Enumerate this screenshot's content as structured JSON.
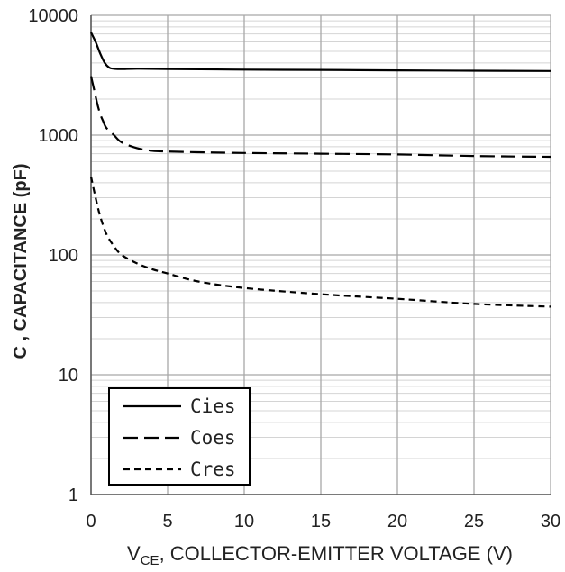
{
  "chart_data": {
    "type": "line",
    "title": "",
    "xlabel_main": "V",
    "xlabel_sub": "CE",
    "xlabel_rest": ", COLLECTOR-EMITTER VOLTAGE (V)",
    "ylabel": "C , CAPACITANCE (pF)",
    "xlim": [
      0,
      30
    ],
    "ylim": [
      1,
      10000
    ],
    "yscale": "log",
    "xticks": [
      0,
      5,
      10,
      15,
      20,
      25,
      30
    ],
    "xtick_labels": [
      "0",
      "5",
      "10",
      "15",
      "20",
      "25",
      "30"
    ],
    "yticks": [
      1,
      10,
      100,
      1000,
      10000
    ],
    "ytick_labels": [
      "1",
      "10",
      "100",
      "1000",
      "10000"
    ],
    "grid": true,
    "legend_position": "bottom-left",
    "series": [
      {
        "name": "Cies",
        "style": "solid",
        "x": [
          0,
          0.3,
          0.6,
          0.9,
          1.2,
          1.5,
          2,
          3,
          5,
          10,
          15,
          20,
          25,
          30
        ],
        "y": [
          7200,
          6000,
          4800,
          4000,
          3650,
          3580,
          3560,
          3580,
          3560,
          3520,
          3500,
          3470,
          3450,
          3430
        ]
      },
      {
        "name": "Coes",
        "style": "long-dash",
        "x": [
          0,
          0.2,
          0.4,
          0.6,
          0.8,
          1,
          1.5,
          2,
          3,
          4,
          5,
          7,
          10,
          15,
          20,
          25,
          30
        ],
        "y": [
          3100,
          2400,
          1850,
          1500,
          1300,
          1150,
          1000,
          870,
          780,
          740,
          730,
          720,
          710,
          700,
          690,
          670,
          660
        ]
      },
      {
        "name": "Cres",
        "style": "short-dash",
        "x": [
          0,
          0.3,
          0.6,
          1,
          1.5,
          2,
          3,
          4,
          5,
          7,
          10,
          15,
          20,
          25,
          30
        ],
        "y": [
          450,
          300,
          210,
          150,
          118,
          100,
          85,
          76,
          70,
          60,
          53,
          47,
          43,
          39,
          37
        ]
      }
    ]
  }
}
